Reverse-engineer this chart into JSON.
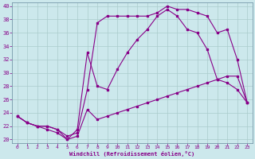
{
  "xlabel": "Windchill (Refroidissement éolien,°C)",
  "bg_color": "#cce8ec",
  "line_color": "#880088",
  "grid_color": "#aacccc",
  "xlim": [
    -0.5,
    23.5
  ],
  "ylim": [
    19.5,
    40.5
  ],
  "xticks": [
    0,
    1,
    2,
    3,
    4,
    5,
    6,
    7,
    8,
    9,
    10,
    11,
    12,
    13,
    14,
    15,
    16,
    17,
    18,
    19,
    20,
    21,
    22,
    23
  ],
  "yticks": [
    20,
    22,
    24,
    26,
    28,
    30,
    32,
    34,
    36,
    38,
    40
  ],
  "line1_x": [
    0,
    1,
    2,
    3,
    4,
    5,
    6,
    7,
    8,
    9,
    10,
    11,
    12,
    13,
    14,
    15,
    16,
    17,
    18,
    19,
    20,
    21,
    22,
    23
  ],
  "line1_y": [
    23.5,
    22.5,
    22.0,
    22.0,
    21.5,
    20.0,
    20.5,
    24.5,
    23.0,
    23.5,
    24.0,
    24.5,
    25.0,
    25.5,
    26.0,
    26.5,
    27.0,
    27.5,
    28.0,
    28.5,
    29.0,
    29.5,
    29.5,
    25.5
  ],
  "line2_x": [
    0,
    1,
    2,
    3,
    4,
    5,
    6,
    7,
    8,
    9,
    10,
    11,
    12,
    13,
    14,
    15,
    16,
    17,
    18,
    19,
    20,
    21,
    22,
    23
  ],
  "line2_y": [
    23.5,
    22.5,
    22.0,
    21.5,
    21.0,
    20.0,
    21.5,
    33.0,
    28.0,
    27.5,
    30.5,
    33.0,
    35.0,
    36.5,
    38.5,
    39.5,
    38.5,
    36.5,
    36.0,
    33.5,
    29.0,
    28.5,
    27.5,
    25.5
  ],
  "line3_x": [
    0,
    1,
    2,
    3,
    4,
    5,
    6,
    7,
    8,
    9,
    10,
    11,
    12,
    13,
    14,
    15,
    16,
    17,
    18,
    19,
    20,
    21,
    22,
    23
  ],
  "line3_y": [
    23.5,
    22.5,
    22.0,
    22.0,
    21.5,
    20.5,
    21.0,
    27.5,
    37.5,
    38.5,
    38.5,
    38.5,
    38.5,
    38.5,
    39.0,
    40.0,
    39.5,
    39.5,
    39.0,
    38.5,
    36.0,
    36.5,
    32.0,
    25.5
  ]
}
